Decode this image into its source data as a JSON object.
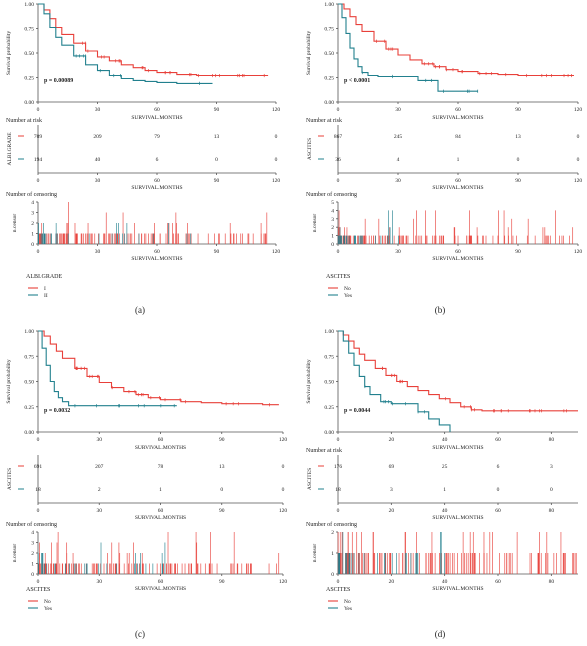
{
  "colors": {
    "red": "#e8403a",
    "teal": "#22808e",
    "axis": "#555555",
    "text": "#222222"
  },
  "chart_data": [
    {
      "panel": "(a)",
      "type": "line",
      "title": "",
      "xlabel": "SURVIVAL.MONTHS",
      "ylabel": "Survival probability",
      "xlim": [
        0,
        120
      ],
      "xticks": [
        0,
        30,
        60,
        90,
        120
      ],
      "ylim": [
        0,
        1
      ],
      "yticks": [
        "0.00",
        "0.25",
        "0.50",
        "0.75",
        "1.00"
      ],
      "pvalue": "p = 0.00089",
      "strata_title": "ALBI.GRADE",
      "series": [
        {
          "name": "I",
          "color": "red",
          "x": [
            0,
            3,
            6,
            9,
            12,
            18,
            24,
            30,
            36,
            42,
            48,
            54,
            60,
            70,
            80,
            90,
            100,
            110,
            116
          ],
          "y": [
            1.0,
            0.94,
            0.85,
            0.76,
            0.69,
            0.6,
            0.52,
            0.46,
            0.42,
            0.38,
            0.35,
            0.32,
            0.3,
            0.28,
            0.27,
            0.27,
            0.27,
            0.27,
            0.27
          ]
        },
        {
          "name": "II",
          "color": "teal",
          "x": [
            0,
            3,
            6,
            9,
            12,
            18,
            24,
            30,
            36,
            42,
            48,
            54,
            60,
            70,
            80,
            88
          ],
          "y": [
            1.0,
            0.9,
            0.76,
            0.66,
            0.58,
            0.47,
            0.38,
            0.32,
            0.27,
            0.24,
            0.22,
            0.21,
            0.2,
            0.19,
            0.19,
            0.19
          ]
        }
      ],
      "risk_table": {
        "title": "Number at risk",
        "ylabel": "ALBI.GRADE",
        "xticks": [
          0,
          30,
          60,
          90,
          120
        ],
        "rows": [
          {
            "color": "red",
            "values": [
              "709",
              "209",
              "79",
              "13",
              "0"
            ]
          },
          {
            "color": "teal",
            "values": [
              "194",
              "40",
              "6",
              "0",
              "0"
            ]
          }
        ]
      },
      "censor": {
        "title": "Number of censoring",
        "ylabel": "n.censor",
        "xticks": [
          0,
          30,
          60,
          90,
          120
        ],
        "yticks": [
          0,
          1,
          2,
          3,
          4
        ],
        "ymax": 4,
        "series": [
          {
            "color": "red",
            "xmax": 116
          },
          {
            "color": "teal",
            "xmax": 88
          }
        ]
      },
      "legend": {
        "title": "ALBI.GRADE",
        "items": [
          {
            "label": "I",
            "color": "red"
          },
          {
            "label": "II",
            "color": "teal"
          }
        ]
      }
    },
    {
      "panel": "(b)",
      "type": "line",
      "title": "",
      "xlabel": "SURVIVAL.MONTHS",
      "ylabel": "Survival probability",
      "xlim": [
        0,
        120
      ],
      "xticks": [
        0,
        30,
        60,
        90,
        120
      ],
      "ylim": [
        0,
        1
      ],
      "yticks": [
        "0.00",
        "0.25",
        "0.50",
        "0.75",
        "1.00"
      ],
      "pvalue": "p < 0.0001",
      "strata_title": "ASCITES",
      "series": [
        {
          "name": "No",
          "color": "red",
          "x": [
            0,
            3,
            6,
            9,
            12,
            18,
            24,
            30,
            36,
            42,
            48,
            54,
            60,
            70,
            80,
            90,
            100,
            110,
            118
          ],
          "y": [
            1.0,
            0.95,
            0.87,
            0.79,
            0.72,
            0.62,
            0.54,
            0.48,
            0.43,
            0.39,
            0.36,
            0.33,
            0.31,
            0.29,
            0.28,
            0.27,
            0.27,
            0.27,
            0.27
          ]
        },
        {
          "name": "Yes",
          "color": "teal",
          "x": [
            0,
            2,
            4,
            6,
            8,
            10,
            12,
            15,
            20,
            25,
            30,
            40,
            50,
            60,
            70
          ],
          "y": [
            1.0,
            0.86,
            0.7,
            0.55,
            0.44,
            0.36,
            0.3,
            0.27,
            0.26,
            0.26,
            0.26,
            0.22,
            0.11,
            0.11,
            0.11
          ]
        }
      ],
      "risk_table": {
        "title": "Number at risk",
        "ylabel": "ASCITES",
        "xticks": [
          0,
          30,
          60,
          90,
          120
        ],
        "rows": [
          {
            "color": "red",
            "values": [
              "867",
              "245",
              "84",
              "13",
              "0"
            ]
          },
          {
            "color": "teal",
            "values": [
              "36",
              "4",
              "1",
              "0",
              "0"
            ]
          }
        ]
      },
      "censor": {
        "title": "Number of censoring",
        "ylabel": "n.censor",
        "xticks": [
          0,
          30,
          60,
          90,
          120
        ],
        "yticks": [
          0,
          1,
          2,
          3,
          4,
          5
        ],
        "ymax": 5,
        "series": [
          {
            "color": "red",
            "xmax": 118
          },
          {
            "color": "teal",
            "xmax": 40
          }
        ]
      },
      "legend": {
        "title": "ASCITES",
        "items": [
          {
            "label": "No",
            "color": "red"
          },
          {
            "label": "Yes",
            "color": "teal"
          }
        ]
      }
    },
    {
      "panel": "(c)",
      "type": "line",
      "title": "",
      "xlabel": "SURVIVAL.MONTHS",
      "ylabel": "Survival probability",
      "xlim": [
        0,
        120
      ],
      "xticks": [
        0,
        30,
        60,
        90,
        120
      ],
      "ylim": [
        0,
        1
      ],
      "yticks": [
        "0.00",
        "0.25",
        "0.50",
        "0.75",
        "1.00"
      ],
      "pvalue": "p = 0.0032",
      "strata_title": "ASCITES",
      "series": [
        {
          "name": "No",
          "color": "red",
          "x": [
            0,
            3,
            6,
            9,
            12,
            18,
            24,
            30,
            36,
            42,
            48,
            54,
            60,
            70,
            80,
            90,
            100,
            110,
            118
          ],
          "y": [
            1.0,
            0.95,
            0.87,
            0.8,
            0.73,
            0.63,
            0.55,
            0.49,
            0.44,
            0.4,
            0.37,
            0.34,
            0.32,
            0.3,
            0.29,
            0.28,
            0.28,
            0.27,
            0.27
          ]
        },
        {
          "name": "Yes",
          "color": "teal",
          "x": [
            0,
            2,
            4,
            6,
            8,
            10,
            12,
            15,
            20,
            30,
            40,
            50,
            60,
            68
          ],
          "y": [
            1.0,
            0.83,
            0.66,
            0.5,
            0.4,
            0.34,
            0.3,
            0.26,
            0.26,
            0.26,
            0.26,
            0.26,
            0.26,
            0.26
          ]
        }
      ],
      "risk_table": {
        "title": "",
        "ylabel": "ASCITES",
        "xticks": [
          0,
          30,
          60,
          90,
          120
        ],
        "rows": [
          {
            "color": "red",
            "values": [
              "691",
              "207",
              "78",
              "13",
              "0"
            ]
          },
          {
            "color": "teal",
            "values": [
              "18",
              "2",
              "1",
              "0",
              "0"
            ]
          }
        ]
      },
      "censor": {
        "title": "Number of censoring",
        "ylabel": "n.censor",
        "xticks": [
          0,
          30,
          60,
          90,
          120
        ],
        "yticks": [
          0,
          1,
          2,
          3,
          4
        ],
        "ymax": 4,
        "series": [
          {
            "color": "red",
            "xmax": 118
          },
          {
            "color": "teal",
            "xmax": 68
          }
        ]
      },
      "legend": {
        "title": "ASCITES",
        "items": [
          {
            "label": "No",
            "color": "red"
          },
          {
            "label": "Yes",
            "color": "teal"
          }
        ]
      }
    },
    {
      "panel": "(d)",
      "type": "line",
      "title": "",
      "xlabel": "SURVIVAL.MONTHS",
      "ylabel": "Survival probability",
      "xlim": [
        0,
        90
      ],
      "xticks": [
        0,
        20,
        40,
        60,
        80
      ],
      "ylim": [
        0,
        1
      ],
      "yticks": [
        "0.00",
        "0.25",
        "0.50",
        "0.75",
        "1.00"
      ],
      "pvalue": "p = 0.0044",
      "strata_title": "ASCITES",
      "series": [
        {
          "name": "No",
          "color": "red",
          "x": [
            0,
            2,
            4,
            6,
            8,
            10,
            14,
            18,
            22,
            26,
            30,
            34,
            38,
            42,
            46,
            50,
            54,
            60,
            70,
            80,
            90
          ],
          "y": [
            1.0,
            0.96,
            0.9,
            0.83,
            0.77,
            0.71,
            0.63,
            0.56,
            0.5,
            0.45,
            0.41,
            0.37,
            0.33,
            0.29,
            0.25,
            0.22,
            0.21,
            0.21,
            0.21,
            0.21,
            0.21
          ]
        },
        {
          "name": "Yes",
          "color": "teal",
          "x": [
            0,
            2,
            4,
            6,
            8,
            10,
            12,
            16,
            20,
            24,
            28,
            30,
            34,
            38,
            42
          ],
          "y": [
            1.0,
            0.9,
            0.78,
            0.66,
            0.55,
            0.45,
            0.37,
            0.3,
            0.28,
            0.28,
            0.28,
            0.2,
            0.13,
            0.07,
            0.0
          ]
        }
      ],
      "risk_table": {
        "title": "Number at risk",
        "ylabel": "ASCITES",
        "xticks": [
          0,
          20,
          40,
          60,
          80
        ],
        "rows": [
          {
            "color": "red",
            "values": [
              "176",
              "69",
              "25",
              "6",
              "3"
            ]
          },
          {
            "color": "teal",
            "values": [
              "18",
              "3",
              "1",
              "0",
              "0"
            ]
          }
        ]
      },
      "censor": {
        "title": "Number of censoring",
        "ylabel": "n.censor",
        "xticks": [
          0,
          20,
          40,
          60,
          80
        ],
        "yticks": [
          0,
          1,
          2
        ],
        "ymax": 2,
        "series": [
          {
            "color": "red",
            "xmax": 90
          },
          {
            "color": "teal",
            "xmax": 40
          }
        ]
      },
      "legend": {
        "title": "ASCITES",
        "items": [
          {
            "label": "No",
            "color": "red"
          },
          {
            "label": "Yes",
            "color": "teal"
          }
        ]
      }
    }
  ]
}
